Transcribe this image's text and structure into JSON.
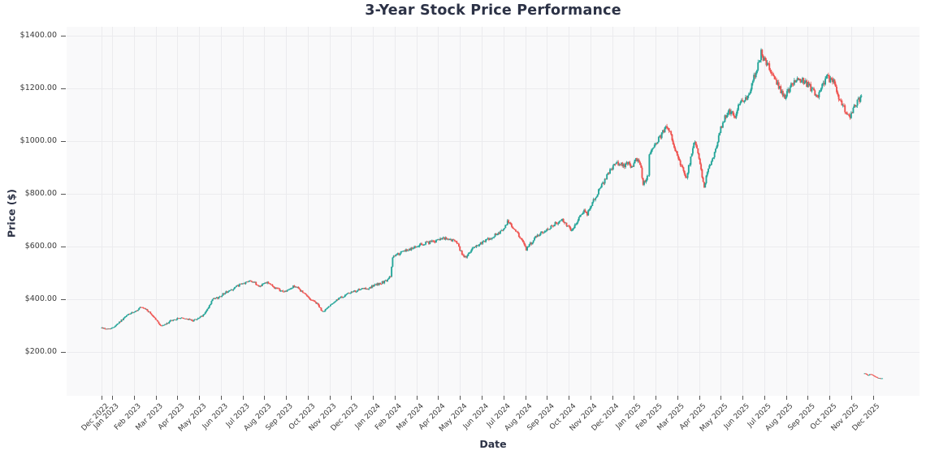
{
  "page": {
    "title": "3-Year Stock Price Performance"
  },
  "chart_data": {
    "type": "candlestick",
    "title": "3-Year Stock Price Performance",
    "xlabel": "Date",
    "ylabel": "Price ($)",
    "legend": null,
    "grid": true,
    "up_color": "#26a69a",
    "down_color": "#ef5350",
    "plot_bg": "#f9f9fa",
    "grid_color": "#ebebee",
    "tick_color": "#555555",
    "ylim": [
      35,
      1435
    ],
    "x_day_range": [
      -34,
      790
    ],
    "days_per_month": 21,
    "first_tick_day_offset": 10,
    "y_ticks": [
      {
        "value": 200,
        "label": "$200.00"
      },
      {
        "value": 400,
        "label": "$400.00"
      },
      {
        "value": 600,
        "label": "$600.00"
      },
      {
        "value": 800,
        "label": "$800.00"
      },
      {
        "value": 1000,
        "label": "$1000.00"
      },
      {
        "value": 1200,
        "label": "$1200.00"
      },
      {
        "value": 1400,
        "label": "$1400.00"
      }
    ],
    "x_ticks": [
      "Dec 2022",
      "Jan 2023",
      "Feb 2023",
      "Mar 2023",
      "Apr 2023",
      "May 2023",
      "Jun 2023",
      "Jul 2023",
      "Aug 2023",
      "Sep 2023",
      "Oct 2023",
      "Nov 2023",
      "Dec 2023",
      "Jan 2024",
      "Feb 2024",
      "Mar 2024",
      "Apr 2024",
      "May 2024",
      "Jun 2024",
      "Jul 2024",
      "Aug 2024",
      "Sep 2024",
      "Oct 2024",
      "Nov 2024",
      "Dec 2024",
      "Jan 2025",
      "Feb 2025",
      "Mar 2025",
      "Apr 2025",
      "May 2025",
      "Jun 2025",
      "Jul 2025",
      "Aug 2025",
      "Sep 2025",
      "Oct 2025",
      "Nov 2025",
      "Dec 2025"
    ],
    "segments": [
      {
        "name": "main-price-series",
        "anchors": [
          [
            0,
            293
          ],
          [
            5,
            288
          ],
          [
            10,
            292
          ],
          [
            18,
            318
          ],
          [
            26,
            345
          ],
          [
            32,
            352
          ],
          [
            37,
            370
          ],
          [
            43,
            362
          ],
          [
            50,
            335
          ],
          [
            57,
            300
          ],
          [
            62,
            306
          ],
          [
            66,
            318
          ],
          [
            75,
            330
          ],
          [
            82,
            327
          ],
          [
            88,
            320
          ],
          [
            97,
            336
          ],
          [
            103,
            368
          ],
          [
            107,
            400
          ],
          [
            113,
            408
          ],
          [
            118,
            424
          ],
          [
            125,
            436
          ],
          [
            131,
            452
          ],
          [
            137,
            460
          ],
          [
            143,
            474
          ],
          [
            148,
            462
          ],
          [
            152,
            450
          ],
          [
            157,
            462
          ],
          [
            160,
            468
          ],
          [
            165,
            450
          ],
          [
            170,
            438
          ],
          [
            175,
            430
          ],
          [
            180,
            434
          ],
          [
            186,
            452
          ],
          [
            191,
            438
          ],
          [
            196,
            420
          ],
          [
            202,
            400
          ],
          [
            208,
            386
          ],
          [
            213,
            352
          ],
          [
            218,
            368
          ],
          [
            222,
            386
          ],
          [
            227,
            398
          ],
          [
            232,
            410
          ],
          [
            238,
            422
          ],
          [
            245,
            432
          ],
          [
            252,
            440
          ],
          [
            258,
            443
          ],
          [
            264,
            455
          ],
          [
            270,
            463
          ],
          [
            275,
            470
          ],
          [
            279,
            488
          ],
          [
            281,
            563
          ],
          [
            286,
            572
          ],
          [
            292,
            582
          ],
          [
            298,
            592
          ],
          [
            305,
            604
          ],
          [
            311,
            612
          ],
          [
            318,
            618
          ],
          [
            325,
            624
          ],
          [
            330,
            630
          ],
          [
            335,
            629
          ],
          [
            342,
            621
          ],
          [
            346,
            590
          ],
          [
            350,
            557
          ],
          [
            355,
            575
          ],
          [
            360,
            600
          ],
          [
            366,
            614
          ],
          [
            372,
            625
          ],
          [
            378,
            640
          ],
          [
            384,
            655
          ],
          [
            389,
            672
          ],
          [
            392,
            695
          ],
          [
            396,
            678
          ],
          [
            400,
            660
          ],
          [
            406,
            625
          ],
          [
            410,
            590
          ],
          [
            415,
            615
          ],
          [
            420,
            640
          ],
          [
            425,
            655
          ],
          [
            430,
            668
          ],
          [
            435,
            680
          ],
          [
            440,
            692
          ],
          [
            445,
            700
          ],
          [
            450,
            680
          ],
          [
            454,
            662
          ],
          [
            458,
            690
          ],
          [
            462,
            720
          ],
          [
            466,
            740
          ],
          [
            469,
            725
          ],
          [
            472,
            755
          ],
          [
            477,
            790
          ],
          [
            482,
            825
          ],
          [
            487,
            862
          ],
          [
            492,
            898
          ],
          [
            497,
            912
          ],
          [
            500,
            920
          ],
          [
            504,
            905
          ],
          [
            508,
            918
          ],
          [
            512,
            903
          ],
          [
            515,
            928
          ],
          [
            518,
            930
          ],
          [
            521,
            898
          ],
          [
            523,
            840
          ],
          [
            526,
            860
          ],
          [
            528,
            872
          ],
          [
            529,
            945
          ],
          [
            532,
            968
          ],
          [
            536,
            1000
          ],
          [
            540,
            1022
          ],
          [
            545,
            1058
          ],
          [
            549,
            1030
          ],
          [
            552,
            992
          ],
          [
            556,
            948
          ],
          [
            560,
            908
          ],
          [
            565,
            863
          ],
          [
            568,
            920
          ],
          [
            572,
            1000
          ],
          [
            575,
            965
          ],
          [
            578,
            918
          ],
          [
            580,
            860
          ],
          [
            582,
            830
          ],
          [
            585,
            880
          ],
          [
            590,
            932
          ],
          [
            594,
            990
          ],
          [
            598,
            1050
          ],
          [
            602,
            1090
          ],
          [
            606,
            1118
          ],
          [
            609,
            1105
          ],
          [
            612,
            1098
          ],
          [
            615,
            1140
          ],
          [
            618,
            1168
          ],
          [
            621,
            1150
          ],
          [
            625,
            1180
          ],
          [
            628,
            1220
          ],
          [
            632,
            1262
          ],
          [
            635,
            1300
          ],
          [
            637,
            1338
          ],
          [
            640,
            1310
          ],
          [
            645,
            1282
          ],
          [
            648,
            1252
          ],
          [
            652,
            1222
          ],
          [
            656,
            1190
          ],
          [
            660,
            1162
          ],
          [
            664,
            1198
          ],
          [
            668,
            1226
          ],
          [
            672,
            1232
          ],
          [
            676,
            1236
          ],
          [
            680,
            1222
          ],
          [
            684,
            1206
          ],
          [
            688,
            1186
          ],
          [
            692,
            1172
          ],
          [
            696,
            1210
          ],
          [
            700,
            1246
          ],
          [
            703,
            1235
          ],
          [
            707,
            1226
          ],
          [
            711,
            1180
          ],
          [
            715,
            1140
          ],
          [
            719,
            1112
          ],
          [
            722,
            1092
          ],
          [
            726,
            1120
          ],
          [
            730,
            1152
          ],
          [
            734,
            1170
          ]
        ]
      },
      {
        "name": "anomalous-tail-segment",
        "anchors": [
          [
            737,
            119
          ],
          [
            740,
            113
          ],
          [
            743,
            117
          ],
          [
            746,
            110
          ],
          [
            749,
            104
          ],
          [
            752,
            100
          ],
          [
            754,
            102
          ]
        ]
      }
    ]
  }
}
